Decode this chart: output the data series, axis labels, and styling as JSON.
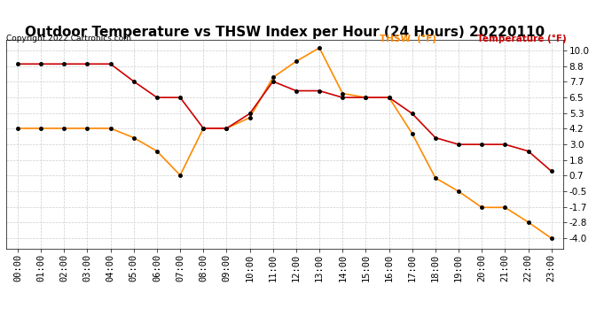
{
  "title": "Outdoor Temperature vs THSW Index per Hour (24 Hours) 20220110",
  "copyright": "Copyright 2022 Cartronics.com",
  "legend_thsw": "THSW  (°F)",
  "legend_temp": "Temperature (°F)",
  "hours": [
    "00:00",
    "01:00",
    "02:00",
    "03:00",
    "04:00",
    "05:00",
    "06:00",
    "07:00",
    "08:00",
    "09:00",
    "10:00",
    "11:00",
    "12:00",
    "13:00",
    "14:00",
    "15:00",
    "16:00",
    "17:00",
    "18:00",
    "19:00",
    "20:00",
    "21:00",
    "22:00",
    "23:00"
  ],
  "temperature": [
    9.0,
    9.0,
    9.0,
    9.0,
    9.0,
    7.7,
    6.5,
    6.5,
    4.2,
    4.2,
    5.3,
    7.7,
    7.0,
    7.0,
    6.5,
    6.5,
    6.5,
    5.3,
    3.5,
    3.0,
    3.0,
    3.0,
    2.5,
    1.0
  ],
  "thsw": [
    4.2,
    4.2,
    4.2,
    4.2,
    4.2,
    3.5,
    2.5,
    0.7,
    4.2,
    4.2,
    5.0,
    8.0,
    9.2,
    10.2,
    6.8,
    6.5,
    6.5,
    3.8,
    0.5,
    -0.5,
    -1.7,
    -1.7,
    -2.8,
    -4.0
  ],
  "ylim": [
    -4.8,
    10.8
  ],
  "yticks": [
    -4.0,
    -2.8,
    -1.7,
    -0.5,
    0.7,
    1.8,
    3.0,
    4.2,
    5.3,
    6.5,
    7.7,
    8.8,
    10.0
  ],
  "temp_color": "#cc0000",
  "thsw_color": "#ff8800",
  "grid_color": "#cccccc",
  "bg_color": "#ffffff",
  "title_fontsize": 11,
  "label_fontsize": 7.5
}
